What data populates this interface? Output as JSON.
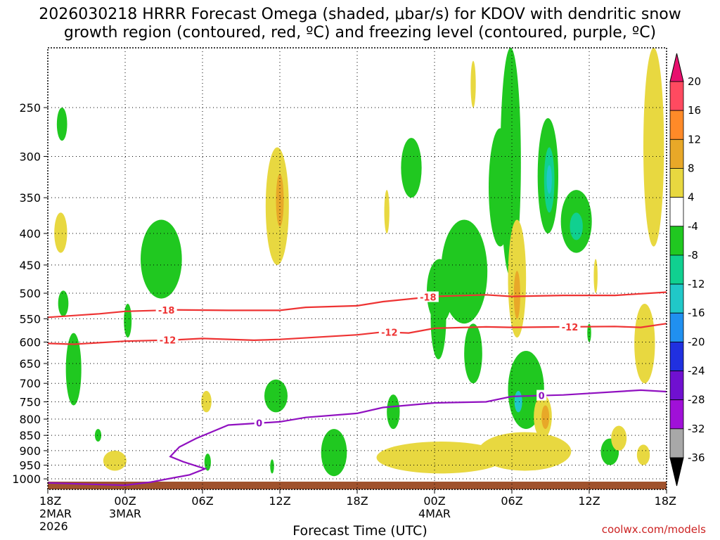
{
  "title_line1": "2026030218 HRRR Forecast Omega (shaded, μbar/s) for KDOV with dendritic snow",
  "title_line2": "growth region (contoured, red, ºC) and freezing level (contoured, purple, ºC)",
  "credit": "coolwx.com/models",
  "chart_data": {
    "type": "heatmap",
    "xlabel": "Forecast Time (UTC)",
    "ylabel": "",
    "x_ticks": [
      {
        "label": "18Z",
        "sub": [
          "2MAR",
          "2026"
        ],
        "hour": 0
      },
      {
        "label": "00Z",
        "sub": [
          "3MAR"
        ],
        "hour": 6
      },
      {
        "label": "06Z",
        "sub": [],
        "hour": 12
      },
      {
        "label": "12Z",
        "sub": [],
        "hour": 18
      },
      {
        "label": "18Z",
        "sub": [],
        "hour": 24
      },
      {
        "label": "00Z",
        "sub": [
          "4MAR"
        ],
        "hour": 30
      },
      {
        "label": "06Z",
        "sub": [],
        "hour": 36
      },
      {
        "label": "12Z",
        "sub": [],
        "hour": 42
      },
      {
        "label": "18Z",
        "sub": [],
        "hour": 48
      }
    ],
    "y_ticks": [
      "250",
      "300",
      "350",
      "400",
      "450",
      "500",
      "550",
      "600",
      "650",
      "700",
      "750",
      "800",
      "850",
      "900",
      "950",
      "1000"
    ],
    "ylim_hpa": [
      1040,
      200
    ],
    "y_scale": "log",
    "grid": true,
    "colorbar": {
      "labels": [
        "20",
        "16",
        "12",
        "8",
        "4",
        "-4",
        "-8",
        "-12",
        "-16",
        "-20",
        "-24",
        "-28",
        "-32",
        "-36"
      ],
      "colors": [
        "#ff4a60",
        "#ff8a28",
        "#e8a828",
        "#e8d840",
        "#ffffff",
        "#20c820",
        "#10d090",
        "#20c8c8",
        "#2090f0",
        "#2030e0",
        "#7010d0",
        "#a010d8",
        "#a8a8a8"
      ],
      "top_arrow_color": "#e8106e",
      "bottom_arrow_color": "#000000"
    },
    "contours": [
      {
        "value": -18,
        "label": "-18",
        "color": "#ee3333",
        "points": [
          [
            0,
            547
          ],
          [
            4,
            540
          ],
          [
            6,
            535
          ],
          [
            10,
            532
          ],
          [
            14,
            533
          ],
          [
            18,
            533
          ],
          [
            20,
            527
          ],
          [
            24,
            524
          ],
          [
            26,
            516
          ],
          [
            30,
            506
          ],
          [
            34,
            503
          ],
          [
            36,
            506
          ],
          [
            40,
            504
          ],
          [
            44,
            504
          ],
          [
            48,
            498
          ]
        ]
      },
      {
        "value": -12,
        "label": "-12",
        "color": "#ee3333",
        "points": [
          [
            0,
            603
          ],
          [
            2,
            605
          ],
          [
            6,
            598
          ],
          [
            10,
            595
          ],
          [
            12,
            592
          ],
          [
            16,
            596
          ],
          [
            18,
            594
          ],
          [
            24,
            584
          ],
          [
            26,
            578
          ],
          [
            28,
            580
          ],
          [
            30,
            570
          ],
          [
            34,
            567
          ],
          [
            36,
            568
          ],
          [
            40,
            567
          ],
          [
            44,
            566
          ],
          [
            46,
            568
          ],
          [
            48,
            560
          ]
        ]
      },
      {
        "value": 0,
        "label": "0",
        "color": "#9010c0",
        "points": [
          [
            0,
            1015
          ],
          [
            3,
            1020
          ],
          [
            6,
            1024
          ],
          [
            8,
            1012
          ],
          [
            11,
            985
          ],
          [
            12.2,
            963
          ],
          [
            10.5,
            938
          ],
          [
            9.5,
            920
          ],
          [
            10.2,
            888
          ],
          [
            11.5,
            860
          ],
          [
            14,
            818
          ],
          [
            18,
            808
          ],
          [
            20,
            795
          ],
          [
            24,
            783
          ],
          [
            26,
            766
          ],
          [
            30,
            753
          ],
          [
            34,
            750
          ],
          [
            36,
            735
          ],
          [
            40,
            731
          ],
          [
            46,
            718
          ],
          [
            48,
            722
          ]
        ]
      }
    ],
    "omega_regions": [
      {
        "value": -6,
        "cx": 1.1,
        "ry": [
          250,
          283
        ],
        "rx": 0.4
      },
      {
        "value": -6,
        "cx": 1.2,
        "ry": [
          495,
          545
        ],
        "rx": 0.4
      },
      {
        "value": -6,
        "cx": 2.0,
        "ry": [
          580,
          760
        ],
        "rx": 0.6
      },
      {
        "value": -6,
        "cx": 3.9,
        "ry": [
          830,
          870
        ],
        "rx": 0.25
      },
      {
        "value": -6,
        "cx": 6.2,
        "ry": [
          520,
          590
        ],
        "rx": 0.3
      },
      {
        "value": -6,
        "cx": 8.8,
        "ry": [
          380,
          510
        ],
        "rx": 1.6
      },
      {
        "value": -6,
        "cx": 12.4,
        "ry": [
          910,
          970
        ],
        "rx": 0.25
      },
      {
        "value": -6,
        "cx": 17.7,
        "ry": [
          690,
          780
        ],
        "rx": 0.9
      },
      {
        "value": -6,
        "cx": 17.4,
        "ry": [
          930,
          980
        ],
        "rx": 0.15
      },
      {
        "value": -6,
        "cx": 22.2,
        "ry": [
          830,
          990
        ],
        "rx": 1.0
      },
      {
        "value": -8,
        "cx": 26.8,
        "ry": [
          730,
          830
        ],
        "rx": 0.5
      },
      {
        "value": -6,
        "cx": 28.2,
        "ry": [
          280,
          350
        ],
        "rx": 0.8
      },
      {
        "value": -6,
        "cx": 30.4,
        "ry": [
          440,
          560
        ],
        "rx": 1.0
      },
      {
        "value": -6,
        "cx": 30.3,
        "ry": [
          470,
          640
        ],
        "rx": 0.6
      },
      {
        "value": -6,
        "cx": 32.3,
        "ry": [
          380,
          560
        ],
        "rx": 1.8
      },
      {
        "value": -8,
        "cx": 33.0,
        "ry": [
          560,
          700
        ],
        "rx": 0.7
      },
      {
        "value": -6,
        "cx": 35.1,
        "ry": [
          270,
          420
        ],
        "rx": 0.9
      },
      {
        "value": -8,
        "cx": 35.9,
        "ry": [
          200,
          470
        ],
        "rx": 0.8
      },
      {
        "value": -8,
        "cx": 38.8,
        "ry": [
          260,
          400
        ],
        "rx": 0.8
      },
      {
        "value": -12,
        "cx": 38.9,
        "ry": [
          290,
          370
        ],
        "rx": 0.4
      },
      {
        "value": -16,
        "cx": 38.9,
        "ry": [
          310,
          345
        ],
        "rx": 0.2
      },
      {
        "value": -8,
        "cx": 41.0,
        "ry": [
          340,
          430
        ],
        "rx": 1.2
      },
      {
        "value": -12,
        "cx": 41.0,
        "ry": [
          370,
          410
        ],
        "rx": 0.5
      },
      {
        "value": -8,
        "cx": 37.1,
        "ry": [
          620,
          830
        ],
        "rx": 1.4
      },
      {
        "value": -16,
        "cx": 36.5,
        "ry": [
          720,
          780
        ],
        "rx": 0.3
      },
      {
        "value": -6,
        "cx": 43.6,
        "ry": [
          860,
          950
        ],
        "rx": 0.7
      },
      {
        "value": -6,
        "cx": 42.0,
        "ry": [
          560,
          600
        ],
        "rx": 0.15
      },
      {
        "value": 6,
        "cx": 1.0,
        "ry": [
          370,
          430
        ],
        "rx": 0.5
      },
      {
        "value": 6,
        "cx": 5.2,
        "ry": [
          900,
          970
        ],
        "rx": 0.9
      },
      {
        "value": 6,
        "cx": 12.3,
        "ry": [
          720,
          780
        ],
        "rx": 0.4
      },
      {
        "value": 6,
        "cx": 17.8,
        "ry": [
          290,
          450
        ],
        "rx": 0.9
      },
      {
        "value": 10,
        "cx": 18.0,
        "ry": [
          320,
          390
        ],
        "rx": 0.3
      },
      {
        "value": 6,
        "cx": 26.3,
        "ry": [
          340,
          400
        ],
        "rx": 0.2
      },
      {
        "value": 6,
        "cx": 30.5,
        "ry": [
          870,
          980
        ],
        "rx": 5.0
      },
      {
        "value": 6,
        "cx": 37.0,
        "ry": [
          840,
          970
        ],
        "rx": 3.6
      },
      {
        "value": 6,
        "cx": 36.4,
        "ry": [
          380,
          590
        ],
        "rx": 0.7
      },
      {
        "value": 10,
        "cx": 36.4,
        "ry": [
          460,
          550
        ],
        "rx": 0.25
      },
      {
        "value": 6,
        "cx": 38.4,
        "ry": [
          730,
          860
        ],
        "rx": 0.7
      },
      {
        "value": 10,
        "cx": 38.6,
        "ry": [
          760,
          830
        ],
        "rx": 0.3
      },
      {
        "value": 6,
        "cx": 42.5,
        "ry": [
          440,
          500
        ],
        "rx": 0.15
      },
      {
        "value": 6,
        "cx": 44.3,
        "ry": [
          820,
          900
        ],
        "rx": 0.6
      },
      {
        "value": 6,
        "cx": 46.3,
        "ry": [
          520,
          700
        ],
        "rx": 0.8
      },
      {
        "value": 6,
        "cx": 47.0,
        "ry": [
          200,
          420
        ],
        "rx": 0.8
      },
      {
        "value": 6,
        "cx": 46.2,
        "ry": [
          880,
          950
        ],
        "rx": 0.5
      },
      {
        "value": 6,
        "cx": 33.0,
        "ry": [
          210,
          250
        ],
        "rx": 0.2
      }
    ]
  }
}
